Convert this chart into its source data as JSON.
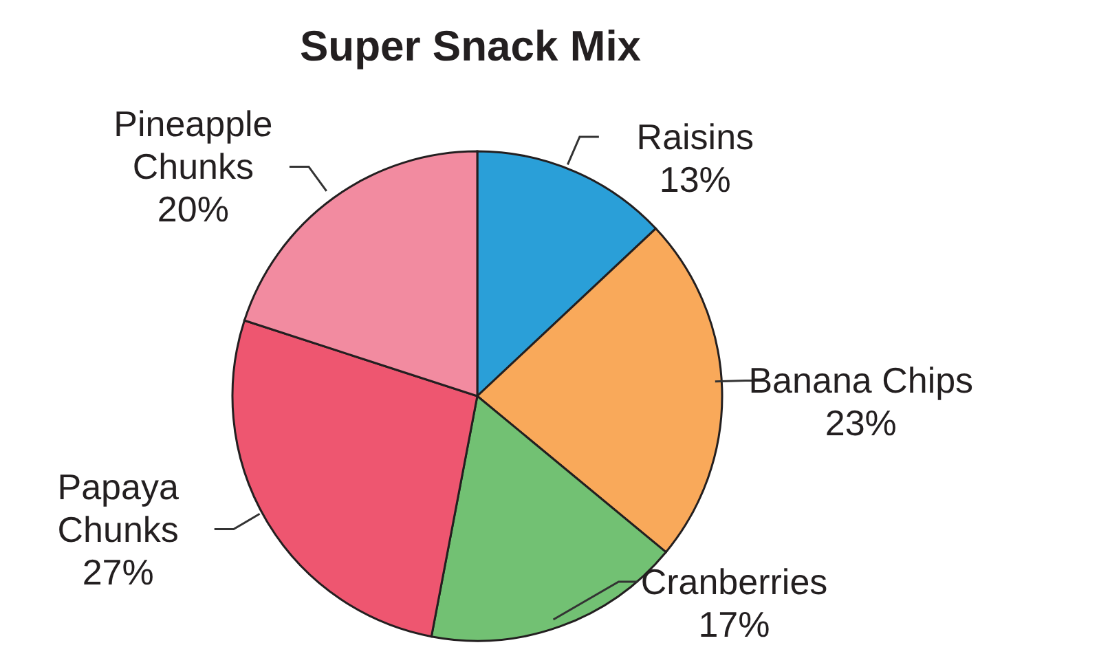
{
  "chart_data": {
    "type": "pie",
    "title": "Super Snack Mix",
    "categories": [
      "Raisins",
      "Banana Chips",
      "Cranberries",
      "Papaya Chunks",
      "Pineapple Chunks"
    ],
    "values": [
      13,
      23,
      17,
      27,
      20
    ],
    "value_labels": [
      "13%",
      "23%",
      "17%",
      "27%",
      "20%"
    ],
    "colors": [
      "#2a9fd8",
      "#f9a95a",
      "#72c173",
      "#ee5670",
      "#f28ba0"
    ],
    "legend": false
  }
}
